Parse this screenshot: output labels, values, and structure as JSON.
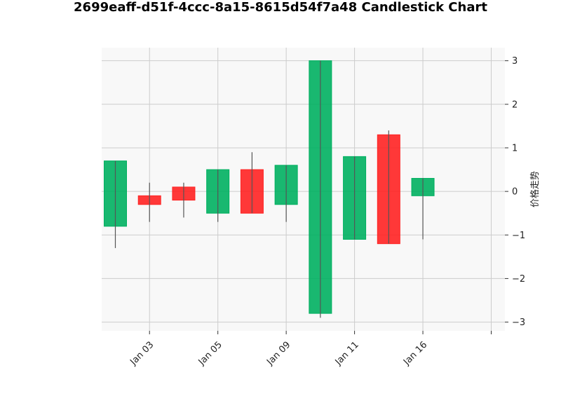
{
  "chart_data": {
    "type": "candlestick",
    "title": "2699eaff-d51f-4ccc-8a15-8615d54f7a48 Candlestick Chart",
    "xlabel": "",
    "ylabel": "价格走势",
    "ylim": [
      -3.2,
      3.3
    ],
    "y_ticks": [
      -3,
      -2,
      -1,
      0,
      1,
      2,
      3
    ],
    "y_axis_side": "right",
    "grid": true,
    "x_tick_labels": [
      "Jan 03",
      "Jan 05",
      "Jan 09",
      "Jan 11",
      "Jan 16",
      ""
    ],
    "x_tick_positions": [
      1,
      3,
      5,
      7,
      9,
      11
    ],
    "x_range": [
      -0.4,
      11.4
    ],
    "colors": {
      "up": "#00b060",
      "down": "#ff2222",
      "wick": "#555555",
      "plot_bg": "#f8f8f8",
      "grid": "#cccccc"
    },
    "candles": [
      {
        "open": -0.8,
        "high": 0.7,
        "low": -1.3,
        "close": 0.7
      },
      {
        "open": -0.1,
        "high": 0.2,
        "low": -0.7,
        "close": -0.3
      },
      {
        "open": 0.1,
        "high": 0.2,
        "low": -0.6,
        "close": -0.2
      },
      {
        "open": -0.5,
        "high": 0.5,
        "low": -0.7,
        "close": 0.5
      },
      {
        "open": 0.5,
        "high": 0.9,
        "low": -0.5,
        "close": -0.5
      },
      {
        "open": -0.3,
        "high": 0.6,
        "low": -0.7,
        "close": 0.6
      },
      {
        "open": -2.8,
        "high": 3.0,
        "low": -2.9,
        "close": 3.0
      },
      {
        "open": -1.1,
        "high": 0.8,
        "low": -1.1,
        "close": 0.8
      },
      {
        "open": 1.3,
        "high": 1.4,
        "low": -1.2,
        "close": -1.2
      },
      {
        "open": -0.1,
        "high": 0.3,
        "low": -1.1,
        "close": 0.3
      }
    ]
  }
}
